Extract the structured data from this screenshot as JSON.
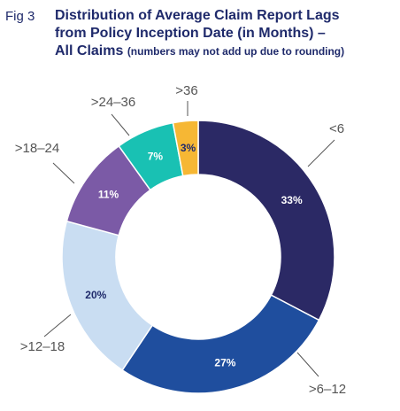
{
  "figure": {
    "label": "Fig 3",
    "title_lines": [
      "Distribution of Average Claim Report Lags",
      "from Policy Inception Date (in Months) –",
      "All Claims"
    ],
    "subtitle": "(numbers may not add up due to rounding)"
  },
  "chart_data": {
    "type": "pie",
    "donut": true,
    "title": "Distribution of Average Claim Report Lags from Policy Inception Date (in Months) – All Claims",
    "subtitle": "(numbers may not add up due to rounding)",
    "unit": "%",
    "slices": [
      {
        "label": "<6",
        "value": 33,
        "display": "33%",
        "color": "#2b2965",
        "text_color": "#ffffff"
      },
      {
        "label": ">6–12",
        "value": 27,
        "display": "27%",
        "color": "#1f4e9e",
        "text_color": "#ffffff"
      },
      {
        "label": ">12–18",
        "value": 20,
        "display": "20%",
        "color": "#c9ddf2",
        "text_color": "#1f2a6b"
      },
      {
        "label": ">18–24",
        "value": 11,
        "display": "11%",
        "color": "#7b5aa6",
        "text_color": "#ffffff"
      },
      {
        "label": ">24–36",
        "value": 7,
        "display": "7%",
        "color": "#19c1b3",
        "text_color": "#ffffff"
      },
      {
        "label": ">36",
        "value": 3,
        "display": "3%",
        "color": "#f6b734",
        "text_color": "#1f2a6b"
      }
    ]
  }
}
